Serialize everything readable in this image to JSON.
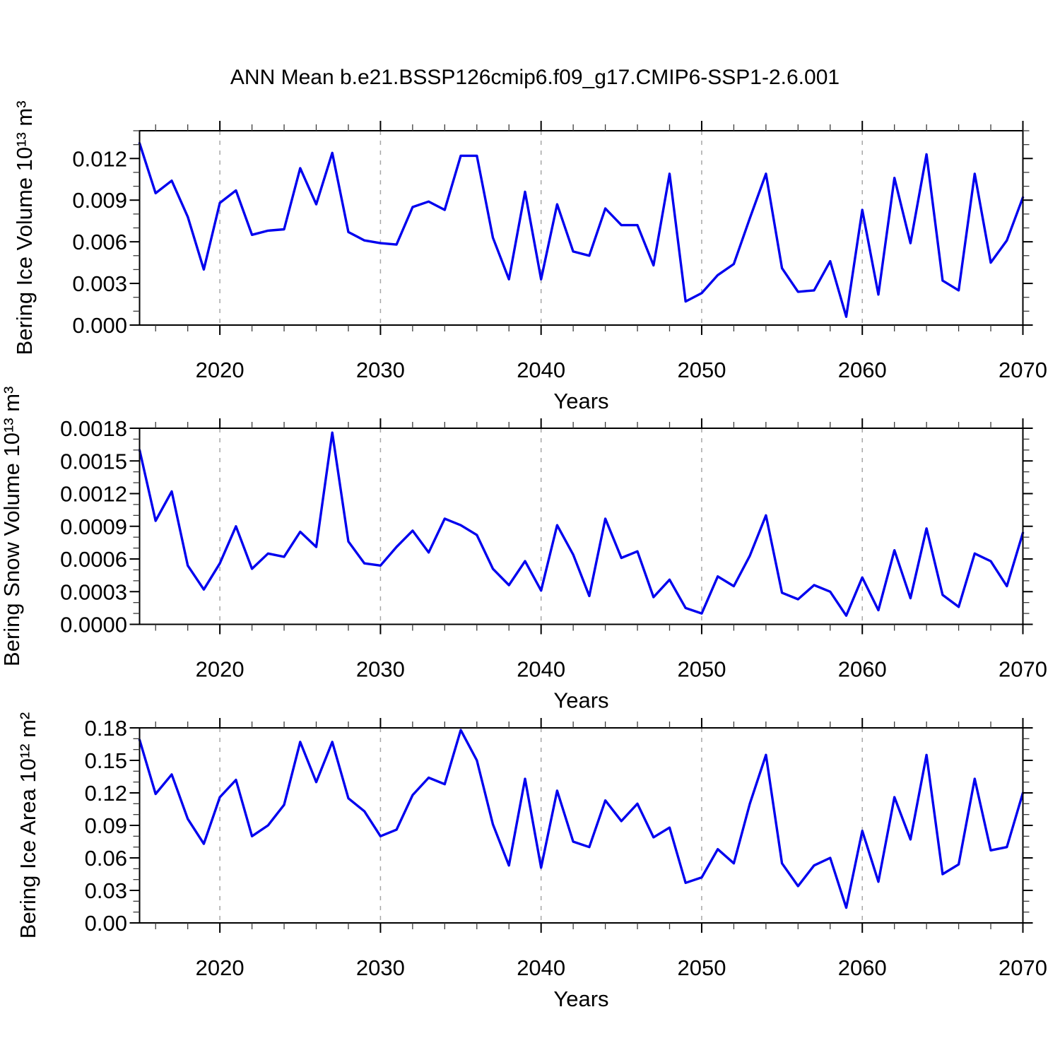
{
  "title": "ANN Mean b.e21.BSSP126cmip6.f09_g17.CMIP6-SSP1-2.6.001",
  "line_color": "#0000EE",
  "chart_data": [
    {
      "type": "line",
      "ylabel": "Bering Ice Volume 10¹³ m³",
      "xlabel": "Years",
      "x_start": 2015,
      "x_end": 2070,
      "x_major_ticks": [
        2020,
        2030,
        2040,
        2050,
        2060,
        2070
      ],
      "x_tick_labels": [
        "2020",
        "2030",
        "2040",
        "2050",
        "2060",
        "2070"
      ],
      "x_minor_step": 2,
      "grid_years": [
        2020,
        2030,
        2040,
        2050,
        2060
      ],
      "ylim": [
        0,
        0.014
      ],
      "y_major_step": 0.003,
      "y_minor_step": 0.001,
      "y_tick_labels": [
        "0.000",
        "0.003",
        "0.006",
        "0.009",
        "0.012"
      ],
      "values": [
        0.0131,
        0.0095,
        0.0104,
        0.0078,
        0.004,
        0.0088,
        0.0097,
        0.0065,
        0.0068,
        0.0069,
        0.0113,
        0.0087,
        0.0124,
        0.0067,
        0.0061,
        0.0059,
        0.0058,
        0.0085,
        0.0089,
        0.0083,
        0.0122,
        0.0122,
        0.0063,
        0.0033,
        0.0096,
        0.0033,
        0.0087,
        0.0053,
        0.005,
        0.0084,
        0.0072,
        0.0072,
        0.0043,
        0.0109,
        0.0017,
        0.0023,
        0.0036,
        0.0044,
        0.0077,
        0.0109,
        0.0041,
        0.0024,
        0.0025,
        0.0046,
        0.0006,
        0.0083,
        0.0022,
        0.0106,
        0.0059,
        0.0123,
        0.0032,
        0.0025,
        0.0109,
        0.0045,
        0.0061,
        0.0092
      ]
    },
    {
      "type": "line",
      "ylabel": "Bering Snow Volume 10¹³ m³",
      "xlabel": "Years",
      "x_start": 2015,
      "x_end": 2070,
      "x_major_ticks": [
        2020,
        2030,
        2040,
        2050,
        2060,
        2070
      ],
      "x_tick_labels": [
        "2020",
        "2030",
        "2040",
        "2050",
        "2060",
        "2070"
      ],
      "x_minor_step": 2,
      "grid_years": [
        2020,
        2030,
        2040,
        2050,
        2060
      ],
      "ylim": [
        0,
        0.0018
      ],
      "y_major_step": 0.0003,
      "y_minor_step": 0.0001,
      "y_tick_labels": [
        "0.0000",
        "0.0003",
        "0.0006",
        "0.0009",
        "0.0012",
        "0.0015",
        "0.0018"
      ],
      "values": [
        0.0016,
        0.00095,
        0.00122,
        0.00054,
        0.00032,
        0.00056,
        0.0009,
        0.00051,
        0.00065,
        0.00062,
        0.00085,
        0.00071,
        0.00176,
        0.00076,
        0.00056,
        0.00054,
        0.00071,
        0.00086,
        0.00066,
        0.00097,
        0.00091,
        0.00082,
        0.00051,
        0.00036,
        0.00058,
        0.00031,
        0.00091,
        0.00064,
        0.00026,
        0.00097,
        0.00061,
        0.00067,
        0.00025,
        0.00041,
        0.00015,
        0.0001,
        0.00044,
        0.00035,
        0.00063,
        0.001,
        0.00029,
        0.00023,
        0.00036,
        0.0003,
        8e-05,
        0.00043,
        0.00013,
        0.00068,
        0.00024,
        0.00088,
        0.00027,
        0.00016,
        0.00065,
        0.00058,
        0.00035,
        0.00084
      ]
    },
    {
      "type": "line",
      "ylabel": "Bering Ice Area 10¹² m²",
      "xlabel": "Years",
      "x_start": 2015,
      "x_end": 2070,
      "x_major_ticks": [
        2020,
        2030,
        2040,
        2050,
        2060,
        2070
      ],
      "x_tick_labels": [
        "2020",
        "2030",
        "2040",
        "2050",
        "2060",
        "2070"
      ],
      "x_minor_step": 2,
      "grid_years": [
        2020,
        2030,
        2040,
        2050,
        2060
      ],
      "ylim": [
        0,
        0.18
      ],
      "y_major_step": 0.03,
      "y_minor_step": 0.01,
      "y_tick_labels": [
        "0.00",
        "0.03",
        "0.06",
        "0.09",
        "0.12",
        "0.15",
        "0.18"
      ],
      "values": [
        0.169,
        0.119,
        0.137,
        0.096,
        0.073,
        0.116,
        0.132,
        0.08,
        0.09,
        0.109,
        0.167,
        0.13,
        0.167,
        0.115,
        0.103,
        0.08,
        0.086,
        0.118,
        0.134,
        0.128,
        0.178,
        0.15,
        0.091,
        0.053,
        0.133,
        0.051,
        0.122,
        0.075,
        0.07,
        0.113,
        0.094,
        0.11,
        0.079,
        0.088,
        0.037,
        0.042,
        0.068,
        0.055,
        0.11,
        0.155,
        0.055,
        0.034,
        0.053,
        0.06,
        0.014,
        0.085,
        0.038,
        0.116,
        0.077,
        0.155,
        0.045,
        0.054,
        0.133,
        0.067,
        0.07,
        0.12
      ]
    }
  ]
}
